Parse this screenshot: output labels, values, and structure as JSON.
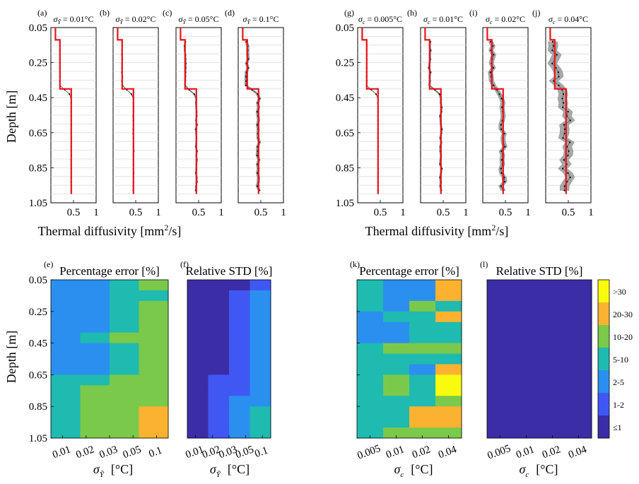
{
  "chart_data": {
    "depth_ticks": [
      "0.05",
      "0.25",
      "0.45",
      "0.65",
      "0.85",
      "1.05"
    ],
    "ylabel": "Depth [m]",
    "xlabel_top": "Thermal diffusivity [mm",
    "xlabel_top_sup": "2",
    "xlabel_top_end": "/s]",
    "profile_xticks": [
      "0.5",
      "1"
    ],
    "profile_xrange": [
      0,
      1
    ],
    "depth_range": [
      0.05,
      1.05
    ],
    "true_profile": {
      "depth": [
        0.05,
        0.12,
        0.12,
        0.4,
        0.4,
        1.0
      ],
      "value": [
        0.1,
        0.1,
        0.2,
        0.2,
        0.45,
        0.45
      ]
    },
    "profile_panels": [
      {
        "tag": "(a)",
        "sigma": "σ",
        "sub": "Ỹ",
        "value": " = 0.01",
        "unit": "°C",
        "noise": 0.004
      },
      {
        "tag": "(b)",
        "sigma": "σ",
        "sub": "Ỹ",
        "value": " = 0.02",
        "unit": "°C",
        "noise": 0.008
      },
      {
        "tag": "(c)",
        "sigma": "σ",
        "sub": "Ỹ",
        "value": " = 0.05",
        "unit": "°C",
        "noise": 0.015
      },
      {
        "tag": "(d)",
        "sigma": "σ",
        "sub": "Ỹ",
        "value": " = 0.1",
        "unit": "°C",
        "noise": 0.03
      },
      {
        "tag": "(g)",
        "sigma": "σ",
        "sub": "c",
        "value": " = 0.005",
        "unit": "°C",
        "noise": 0.004
      },
      {
        "tag": "(h)",
        "sigma": "σ",
        "sub": "c",
        "value": " = 0.01",
        "unit": "°C",
        "noise": 0.02
      },
      {
        "tag": "(i)",
        "sigma": "σ",
        "sub": "c",
        "value": " = 0.02",
        "unit": "°C",
        "noise": 0.05
      },
      {
        "tag": "(j)",
        "sigma": "σ",
        "sub": "c",
        "value": " = 0.04",
        "unit": "°C",
        "noise": 0.1
      }
    ],
    "heatmap_panels": [
      {
        "tag": "(e)",
        "title": "Percentage error [%]",
        "xticks": [
          "0.01",
          "0.02",
          "0.03",
          "0.05",
          "0.1"
        ]
      },
      {
        "tag": "(f)",
        "title": "Relative STD [%]",
        "xticks": [
          "0.01",
          "0.02",
          "0.03",
          "0.05",
          "0.1"
        ]
      },
      {
        "tag": "(k)",
        "title": "Percentage error [%]",
        "xticks": [
          "0.005",
          "0.01",
          "0.02",
          "0.04"
        ]
      },
      {
        "tag": "(l)",
        "title": "Relative STD [%]",
        "xticks": [
          "0.005",
          "0.01",
          "0.02",
          "0.04"
        ]
      }
    ],
    "xlabel_left": {
      "sigma": "σ",
      "sub": "Ỹ",
      "unit": "[°C]"
    },
    "xlabel_right": {
      "sigma": "σ",
      "sub": "c",
      "unit": "[°C]"
    },
    "colorbar": {
      "labels": [
        ">30",
        "20-30",
        "10-20",
        "5-10",
        "2-5",
        "1-2",
        "≤1"
      ],
      "colors": [
        "#f9fb0e",
        "#fbb231",
        "#7bc94b",
        "#1fbab0",
        "#2b8ff0",
        "#4157f4",
        "#3b2da6"
      ]
    }
  }
}
